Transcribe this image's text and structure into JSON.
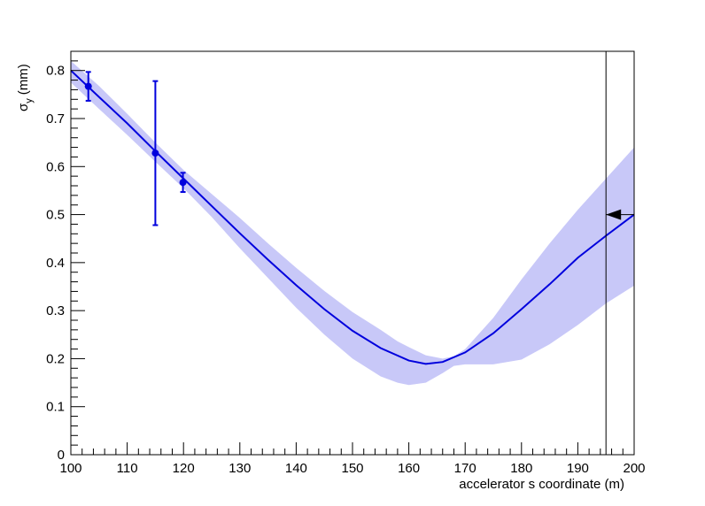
{
  "chart_data": {
    "type": "line",
    "title": "",
    "xlabel": "accelerator s coordinate (m)",
    "ylabel": {
      "symbol": "σ",
      "subscript": "y",
      "unit": "(mm)"
    },
    "xlim": [
      100,
      200
    ],
    "ylim": [
      0,
      0.84
    ],
    "x_ticks": [
      "100",
      "110",
      "120",
      "130",
      "140",
      "150",
      "160",
      "170",
      "180",
      "190",
      "200"
    ],
    "y_ticks": [
      "0",
      "0.1",
      "0.2",
      "0.3",
      "0.4",
      "0.5",
      "0.6",
      "0.7",
      "0.8"
    ],
    "grid": false,
    "colors": {
      "fit_line": "#0000dd",
      "band": "#c8c8f8",
      "points": "#0000dd",
      "marker": "#000000"
    },
    "measurements": [
      {
        "x": 103.1,
        "y": 0.767,
        "y_err": 0.03
      },
      {
        "x": 115.0,
        "y": 0.628,
        "y_err": 0.15
      },
      {
        "x": 119.9,
        "y": 0.567,
        "y_err": 0.02
      }
    ],
    "fit_curve": {
      "x": [
        100,
        105,
        110,
        115,
        120,
        125,
        130,
        135,
        140,
        145,
        150,
        155,
        160,
        163,
        166,
        170,
        175,
        180,
        185,
        190,
        195,
        200
      ],
      "y": [
        0.8,
        0.745,
        0.69,
        0.632,
        0.575,
        0.518,
        0.461,
        0.406,
        0.353,
        0.303,
        0.258,
        0.222,
        0.196,
        0.189,
        0.193,
        0.213,
        0.253,
        0.303,
        0.355,
        0.41,
        0.456,
        0.5
      ]
    },
    "uncertainty_band": {
      "x": [
        100,
        105,
        110,
        115,
        120,
        125,
        130,
        135,
        140,
        145,
        150,
        155,
        158,
        160,
        163,
        166,
        168,
        170,
        175,
        180,
        185,
        190,
        195,
        200
      ],
      "upper": [
        0.82,
        0.768,
        0.71,
        0.65,
        0.593,
        0.543,
        0.493,
        0.44,
        0.389,
        0.341,
        0.297,
        0.26,
        0.236,
        0.224,
        0.207,
        0.2,
        0.205,
        0.22,
        0.285,
        0.365,
        0.44,
        0.51,
        0.575,
        0.64
      ],
      "lower": [
        0.775,
        0.72,
        0.666,
        0.61,
        0.555,
        0.495,
        0.43,
        0.368,
        0.306,
        0.25,
        0.2,
        0.163,
        0.15,
        0.145,
        0.15,
        0.17,
        0.185,
        0.188,
        0.188,
        0.198,
        0.23,
        0.27,
        0.315,
        0.352
      ]
    },
    "vertical_marker": {
      "x": 195
    },
    "arrow_marker": {
      "x": 195,
      "y": 0.5,
      "direction": "left"
    }
  }
}
